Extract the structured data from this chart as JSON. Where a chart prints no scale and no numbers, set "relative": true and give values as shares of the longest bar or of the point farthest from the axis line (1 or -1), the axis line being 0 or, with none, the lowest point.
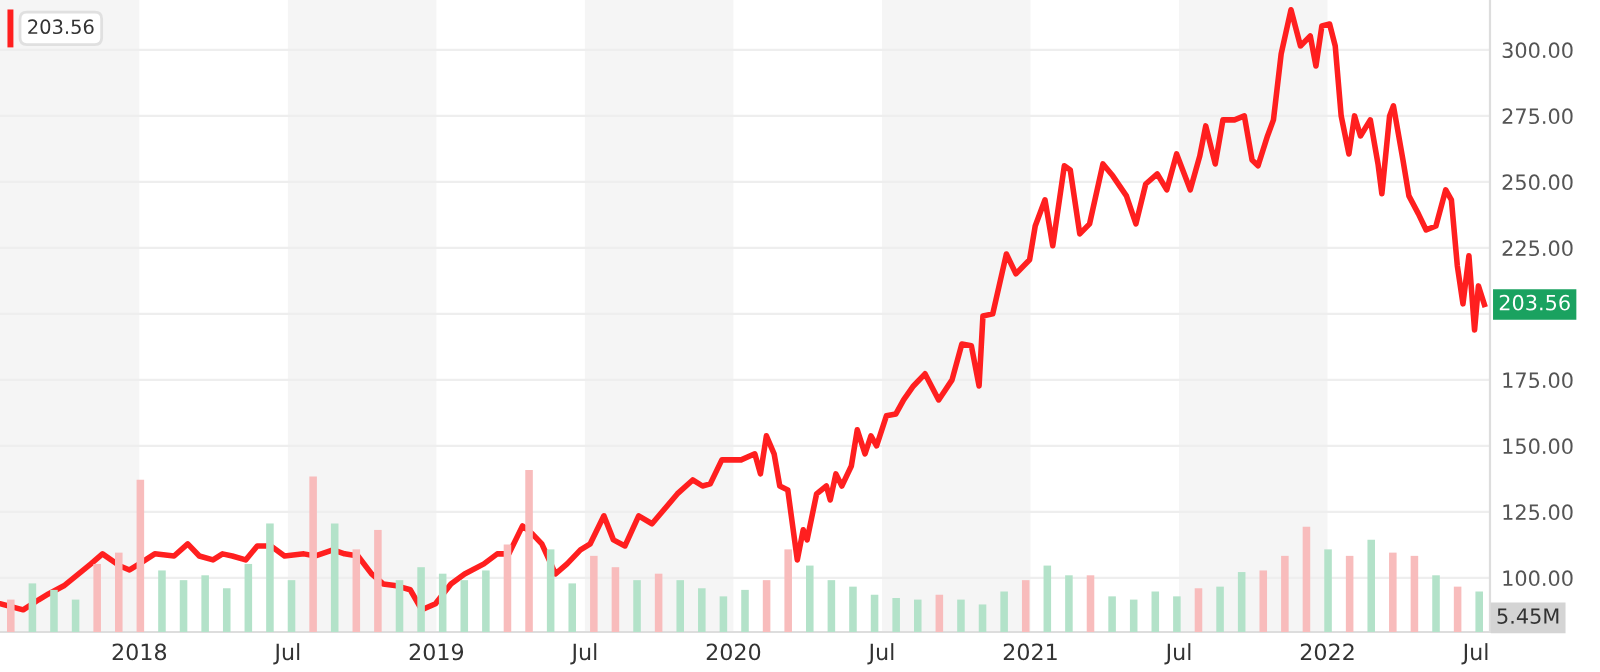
{
  "chart_data": [
    {
      "type": "line",
      "x": [
        2017.531,
        2017.609,
        2017.661,
        2017.694,
        2017.746,
        2017.837,
        2017.876,
        2017.935,
        2017.967,
        2018.0,
        2018.052,
        2018.117,
        2018.163,
        2018.202,
        2018.248,
        2018.28,
        2018.313,
        2018.358,
        2018.397,
        2018.443,
        2018.489,
        2018.554,
        2018.593,
        2018.652,
        2018.691,
        2018.736,
        2018.782,
        2018.821,
        2018.866,
        2018.912,
        2018.951,
        2018.997,
        2019.049,
        2019.095,
        2019.16,
        2019.205,
        2019.244,
        2019.29,
        2019.323,
        2019.355,
        2019.401,
        2019.44,
        2019.485,
        2019.518,
        2019.564,
        2019.596,
        2019.635,
        2019.681,
        2019.726,
        2019.766,
        2019.811,
        2019.863,
        2019.896,
        2019.922,
        2019.961,
        2020.026,
        2020.072,
        2020.091,
        2020.111,
        2020.137,
        2020.156,
        2020.183,
        2020.215,
        2020.235,
        2020.248,
        2020.28,
        2020.313,
        2020.326,
        2020.345,
        2020.365,
        2020.397,
        2020.417,
        2020.443,
        2020.463,
        2020.482,
        2020.515,
        2020.547,
        2020.573,
        2020.606,
        2020.645,
        2020.691,
        2020.736,
        2020.769,
        2020.801,
        2020.827,
        2020.84,
        2020.873,
        2020.919,
        2020.951,
        2020.997,
        2021.016,
        2021.049,
        2021.075,
        2021.114,
        2021.134,
        2021.166,
        2021.199,
        2021.244,
        2021.277,
        2021.323,
        2021.355,
        2021.388,
        2021.427,
        2021.459,
        2021.492,
        2021.538,
        2021.57,
        2021.59,
        2021.622,
        2021.648,
        2021.687,
        2021.72,
        2021.746,
        2021.766,
        2021.798,
        2021.818,
        2021.844,
        2021.877,
        2021.909,
        2021.942,
        2021.961,
        2021.981,
        2022.007,
        2022.026,
        2022.046,
        2022.072,
        2022.091,
        2022.111,
        2022.144,
        2022.17,
        2022.183,
        2022.209,
        2022.222,
        2022.254,
        2022.274,
        2022.306,
        2022.332,
        2022.365,
        2022.398,
        2022.417,
        2022.437,
        2022.456,
        2022.476,
        2022.495,
        2022.508,
        2022.528
      ],
      "series": [
        {
          "color": "#ff1f1f",
          "values": [
            90.2,
            87.9,
            91.7,
            93.9,
            97.0,
            105.3,
            109.1,
            104.5,
            103.0,
            105.3,
            109.1,
            108.3,
            112.9,
            108.3,
            106.8,
            109.1,
            108.3,
            106.8,
            112.1,
            112.1,
            108.3,
            109.1,
            108.3,
            110.6,
            109.1,
            108.3,
            101.5,
            97.7,
            97.0,
            95.5,
            87.9,
            90.2,
            97.7,
            101.5,
            105.3,
            109.1,
            109.1,
            119.7,
            116.7,
            112.9,
            101.5,
            105.3,
            110.6,
            112.9,
            123.5,
            114.4,
            112.1,
            123.5,
            120.5,
            125.8,
            131.8,
            137.1,
            134.8,
            135.6,
            144.7,
            144.7,
            147.0,
            139.4,
            153.8,
            147.0,
            134.8,
            133.3,
            106.8,
            118.2,
            114.4,
            131.8,
            134.8,
            129.5,
            139.4,
            134.8,
            142.4,
            156.1,
            147.0,
            153.8,
            150.0,
            161.4,
            162.1,
            167.4,
            172.7,
            177.3,
            167.4,
            175.0,
            188.6,
            187.9,
            172.7,
            199.2,
            200.0,
            222.7,
            215.2,
            220.5,
            233.3,
            243.2,
            225.8,
            256.1,
            254.5,
            230.3,
            234.1,
            256.8,
            252.3,
            244.7,
            234.1,
            249.2,
            253.0,
            247.0,
            260.6,
            247.0,
            259.8,
            271.2,
            256.8,
            273.5,
            273.5,
            275.0,
            258.3,
            256.1,
            267.4,
            273.5,
            298.5,
            315.2,
            301.5,
            305.3,
            293.9,
            309.1,
            309.8,
            301.5,
            275.0,
            260.6,
            275.0,
            267.4,
            273.5,
            256.8,
            245.5,
            275.0,
            278.8,
            258.3,
            244.7,
            237.9,
            231.8,
            233.3,
            247.0,
            243.2,
            218.2,
            203.8,
            222.0,
            193.9,
            210.6,
            203.56
          ]
        }
      ],
      "xlim": [
        2017.531,
        2022.547
      ],
      "xticks": [
        {
          "value": 2018,
          "label": "2018"
        },
        {
          "value": 2018.5,
          "label": "Jul"
        },
        {
          "value": 2019,
          "label": "2019"
        },
        {
          "value": 2019.5,
          "label": "Jul"
        },
        {
          "value": 2020,
          "label": "2020"
        },
        {
          "value": 2020.5,
          "label": "Jul"
        },
        {
          "value": 2021,
          "label": "2021"
        },
        {
          "value": 2021.5,
          "label": "Jul"
        },
        {
          "value": 2022,
          "label": "2022"
        },
        {
          "value": 2022.5,
          "label": "Jul"
        }
      ],
      "ylim": [
        79.5,
        318.9
      ],
      "yticks": [
        {
          "value": 100,
          "label": "100.00"
        },
        {
          "value": 125,
          "label": "125.00"
        },
        {
          "value": 150,
          "label": "150.00"
        },
        {
          "value": 175,
          "label": "175.00"
        },
        {
          "value": 200,
          "label": null
        },
        {
          "value": 225,
          "label": "225.00"
        },
        {
          "value": 250,
          "label": "250.00"
        },
        {
          "value": 275,
          "label": "275.00"
        },
        {
          "value": 300,
          "label": "300.00"
        }
      ],
      "grid": "y",
      "bands": [
        {
          "axis": "x",
          "from": 2017.531,
          "to": 2018.0,
          "color": "#f5f5f5"
        },
        {
          "axis": "x",
          "from": 2018.5,
          "to": 2019.0,
          "color": "#f5f5f5"
        },
        {
          "axis": "x",
          "from": 2019.5,
          "to": 2020.0,
          "color": "#f5f5f5"
        },
        {
          "axis": "x",
          "from": 2020.5,
          "to": 2021.0,
          "color": "#f5f5f5"
        },
        {
          "axis": "x",
          "from": 2021.5,
          "to": 2022.0,
          "color": "#f5f5f5"
        }
      ],
      "annotations": [
        "203.56",
        {
          "text": "203.56",
          "x": 2022.528,
          "y": 203.56
        }
      ]
    },
    {
      "type": "bar",
      "relative": true,
      "categories": [
        null,
        null,
        null,
        null,
        null,
        null,
        null,
        null,
        null,
        null,
        null,
        null,
        null,
        null,
        null,
        null,
        null,
        null,
        null,
        null,
        null,
        null,
        null,
        null,
        null,
        null,
        null,
        null,
        null,
        null,
        null,
        null,
        null,
        null,
        null,
        null,
        null,
        null,
        null,
        null,
        null,
        null,
        null,
        null,
        null,
        null,
        null,
        null,
        null,
        null,
        null,
        null,
        null,
        null,
        null,
        null,
        null,
        null,
        null,
        null,
        null,
        null,
        null,
        null,
        null,
        null,
        null,
        null,
        null
      ],
      "values": [
        0.2,
        0.3,
        0.26,
        0.2,
        0.42,
        0.49,
        0.94,
        0.38,
        0.32,
        0.35,
        0.27,
        0.42,
        0.67,
        0.32,
        0.96,
        0.67,
        0.51,
        0.63,
        0.32,
        0.4,
        0.36,
        0.32,
        0.38,
        0.54,
        1.0,
        0.51,
        0.3,
        0.47,
        0.4,
        0.32,
        0.36,
        0.32,
        0.27,
        0.22,
        0.26,
        0.32,
        0.51,
        0.41,
        0.32,
        0.28,
        0.23,
        0.21,
        0.2,
        0.23,
        0.2,
        0.17,
        0.25,
        0.32,
        0.41,
        0.35,
        0.35,
        0.22,
        0.2,
        0.25,
        0.22,
        0.27,
        0.28,
        0.37,
        0.38,
        0.47,
        0.65,
        0.51,
        0.47,
        0.57,
        0.49,
        0.47,
        0.35,
        0.28,
        0.25
      ],
      "colors": [
        "#f8bcbc",
        "#b3e2c9",
        "#b3e2c9",
        "#b3e2c9",
        "#f8bcbc",
        "#f8bcbc",
        "#f8bcbc",
        "#b3e2c9",
        "#b3e2c9",
        "#b3e2c9",
        "#b3e2c9",
        "#b3e2c9",
        "#b3e2c9",
        "#b3e2c9",
        "#f8bcbc",
        "#b3e2c9",
        "#f8bcbc",
        "#f8bcbc",
        "#b3e2c9",
        "#b3e2c9",
        "#b3e2c9",
        "#b3e2c9",
        "#b3e2c9",
        "#f8bcbc",
        "#f8bcbc",
        "#b3e2c9",
        "#b3e2c9",
        "#f8bcbc",
        "#f8bcbc",
        "#b3e2c9",
        "#f8bcbc",
        "#b3e2c9",
        "#b3e2c9",
        "#b3e2c9",
        "#b3e2c9",
        "#f8bcbc",
        "#f8bcbc",
        "#b3e2c9",
        "#b3e2c9",
        "#b3e2c9",
        "#b3e2c9",
        "#b3e2c9",
        "#b3e2c9",
        "#f8bcbc",
        "#b3e2c9",
        "#b3e2c9",
        "#b3e2c9",
        "#f8bcbc",
        "#b3e2c9",
        "#b3e2c9",
        "#f8bcbc",
        "#b3e2c9",
        "#b3e2c9",
        "#b3e2c9",
        "#b3e2c9",
        "#f8bcbc",
        "#b3e2c9",
        "#b3e2c9",
        "#f8bcbc",
        "#f8bcbc",
        "#f8bcbc",
        "#b3e2c9",
        "#f8bcbc",
        "#b3e2c9",
        "#f8bcbc",
        "#f8bcbc",
        "#b3e2c9",
        "#f8bcbc",
        "#b3e2c9"
      ],
      "annotations": [
        "5.45M"
      ]
    }
  ]
}
